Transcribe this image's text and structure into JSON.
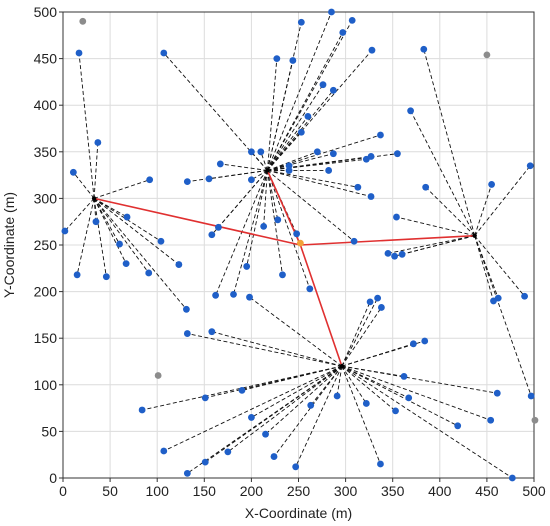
{
  "chart_data": {
    "type": "scatter",
    "title": "",
    "xlabel": "X-Coordinate (m)",
    "ylabel": "Y-Coordinate (m)",
    "xlim": [
      0,
      500
    ],
    "ylim": [
      0,
      500
    ],
    "xticks": [
      0,
      50,
      100,
      150,
      200,
      250,
      300,
      350,
      400,
      450,
      500
    ],
    "yticks": [
      0,
      50,
      100,
      150,
      200,
      250,
      300,
      350,
      400,
      450,
      500
    ],
    "grid": true,
    "colors": {
      "node": "#1f5fc8",
      "inactive_node": "#8c8c8c",
      "sink": "#f2a33a",
      "backbone": "#e03030",
      "link": "#111111"
    },
    "sink": {
      "x": 252,
      "y": 252
    },
    "backbone_links": [
      {
        "from": [
          33,
          300
        ],
        "to": [
          252,
          250
        ]
      },
      {
        "from": [
          252,
          250
        ],
        "to": [
          437,
          260
        ]
      },
      {
        "from": [
          252,
          250
        ],
        "to": [
          296,
          120
        ]
      },
      {
        "from": [
          252,
          250
        ],
        "to": [
          217,
          330
        ]
      }
    ],
    "clusters": [
      {
        "head": {
          "x": 33,
          "y": 300
        },
        "members": [
          [
            17,
            456
          ],
          [
            37,
            360
          ],
          [
            11,
            328
          ],
          [
            92,
            320
          ],
          [
            2,
            265
          ],
          [
            35,
            275
          ],
          [
            68,
            280
          ],
          [
            60,
            251
          ],
          [
            67,
            230
          ],
          [
            104,
            254
          ],
          [
            15,
            218
          ],
          [
            46,
            216
          ],
          [
            91,
            220
          ],
          [
            123,
            229
          ],
          [
            131,
            181
          ]
        ]
      },
      {
        "head": {
          "x": 217,
          "y": 330
        },
        "members": [
          [
            107,
            456
          ],
          [
            227,
            450
          ],
          [
            244,
            448
          ],
          [
            253,
            489
          ],
          [
            285,
            500
          ],
          [
            297,
            478
          ],
          [
            307,
            491
          ],
          [
            328,
            459
          ],
          [
            276,
            422
          ],
          [
            287,
            416
          ],
          [
            253,
            371
          ],
          [
            260,
            388
          ],
          [
            200,
            350
          ],
          [
            210,
            350
          ],
          [
            167,
            337
          ],
          [
            155,
            321
          ],
          [
            132,
            318
          ],
          [
            200,
            320
          ],
          [
            240,
            330
          ],
          [
            240,
            335
          ],
          [
            270,
            350
          ],
          [
            287,
            348
          ],
          [
            282,
            330
          ],
          [
            322,
            342
          ],
          [
            327,
            345
          ],
          [
            337,
            368
          ],
          [
            355,
            348
          ],
          [
            313,
            312
          ],
          [
            327,
            302
          ],
          [
            309,
            254
          ],
          [
            213,
            270
          ],
          [
            228,
            277
          ],
          [
            248,
            262
          ],
          [
            165,
            269
          ],
          [
            158,
            261
          ],
          [
            195,
            227
          ],
          [
            162,
            196
          ],
          [
            233,
            218
          ],
          [
            181,
            197
          ],
          [
            262,
            203
          ]
        ]
      },
      {
        "head": {
          "x": 437,
          "y": 260
        },
        "members": [
          [
            383,
            460
          ],
          [
            369,
            394
          ],
          [
            385,
            312
          ],
          [
            455,
            315
          ],
          [
            496,
            335
          ],
          [
            354,
            280
          ],
          [
            345,
            241
          ],
          [
            352,
            238
          ],
          [
            360,
            240
          ],
          [
            457,
            190
          ],
          [
            462,
            193
          ],
          [
            490,
            195
          ],
          [
            497,
            88
          ]
        ]
      },
      {
        "head": {
          "x": 296,
          "y": 120
        },
        "members": [
          [
            326,
            189
          ],
          [
            334,
            193
          ],
          [
            338,
            183
          ],
          [
            372,
            144
          ],
          [
            384,
            147
          ],
          [
            132,
            155
          ],
          [
            158,
            157
          ],
          [
            198,
            194
          ],
          [
            362,
            109
          ],
          [
            461,
            91
          ],
          [
            151,
            86
          ],
          [
            84,
            73
          ],
          [
            190,
            94
          ],
          [
            200,
            65
          ],
          [
            291,
            88
          ],
          [
            263,
            78
          ],
          [
            322,
            80
          ],
          [
            353,
            72
          ],
          [
            367,
            86
          ],
          [
            419,
            56
          ],
          [
            454,
            62
          ],
          [
            107,
            29
          ],
          [
            175,
            28
          ],
          [
            215,
            47
          ],
          [
            224,
            23
          ],
          [
            247,
            12
          ],
          [
            337,
            15
          ],
          [
            132,
            5
          ],
          [
            151,
            17
          ],
          [
            477,
            0
          ]
        ]
      }
    ],
    "isolated": [
      [
        21,
        490
      ],
      [
        450,
        454
      ],
      [
        101,
        110
      ],
      [
        501,
        62
      ]
    ]
  }
}
